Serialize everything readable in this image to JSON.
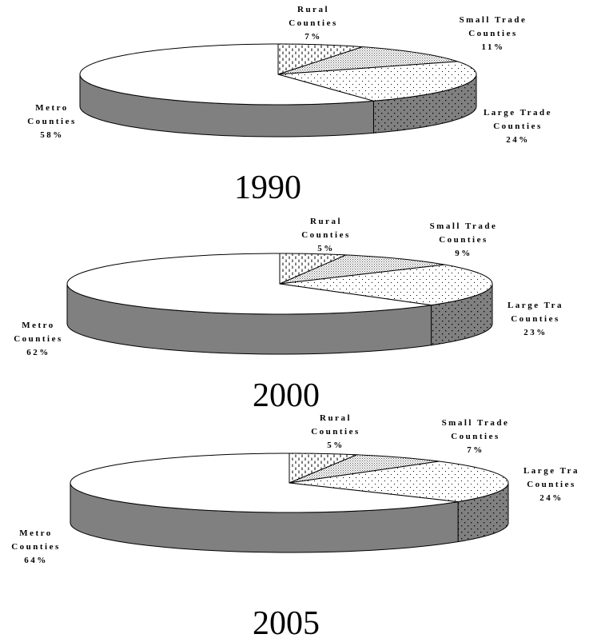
{
  "chart_data": [
    {
      "type": "pie",
      "title": "1990",
      "categories": [
        "Rural Counties",
        "Small Trade Counties",
        "Large Trade Counties",
        "Metro Counties"
      ],
      "values": [
        7,
        11,
        24,
        58
      ],
      "labels": [
        {
          "lines": [
            "Rural",
            "Counties",
            "7%"
          ]
        },
        {
          "lines": [
            "Small Trade",
            "Counties",
            "11%"
          ]
        },
        {
          "lines": [
            "Large Trade",
            "Counties",
            "24%"
          ]
        },
        {
          "lines": [
            "Metro",
            "Counties",
            "58%"
          ]
        }
      ]
    },
    {
      "type": "pie",
      "title": "2000",
      "categories": [
        "Rural Counties",
        "Small Trade Counties",
        "Large Trade Counties",
        "Metro Counties"
      ],
      "values": [
        5,
        9,
        23,
        62
      ],
      "labels": [
        {
          "lines": [
            "Rural",
            "Counties",
            "5%"
          ]
        },
        {
          "lines": [
            "Small Trade",
            "Counties",
            "9%"
          ]
        },
        {
          "lines": [
            "Large Tra",
            "Counties",
            "23%"
          ]
        },
        {
          "lines": [
            "Metro",
            "Counties",
            "62%"
          ]
        }
      ]
    },
    {
      "type": "pie",
      "title": "2005",
      "categories": [
        "Rural Counties",
        "Small Trade Counties",
        "Large Trade Counties",
        "Metro Counties"
      ],
      "values": [
        5,
        7,
        24,
        64
      ],
      "labels": [
        {
          "lines": [
            "Rural",
            "Counties",
            "5%"
          ]
        },
        {
          "lines": [
            "Small Trade",
            "Counties",
            "7%"
          ]
        },
        {
          "lines": [
            "Large Tra",
            "Counties",
            "24%"
          ]
        },
        {
          "lines": [
            "Metro",
            "Counties",
            "64%"
          ]
        }
      ]
    }
  ],
  "colors": {
    "rural": "vertical-dash pattern",
    "small_trade": "dense-dot pattern",
    "large_trade": "sparse-dot pattern",
    "metro": "#ffffff",
    "side_plain": "#808080"
  }
}
